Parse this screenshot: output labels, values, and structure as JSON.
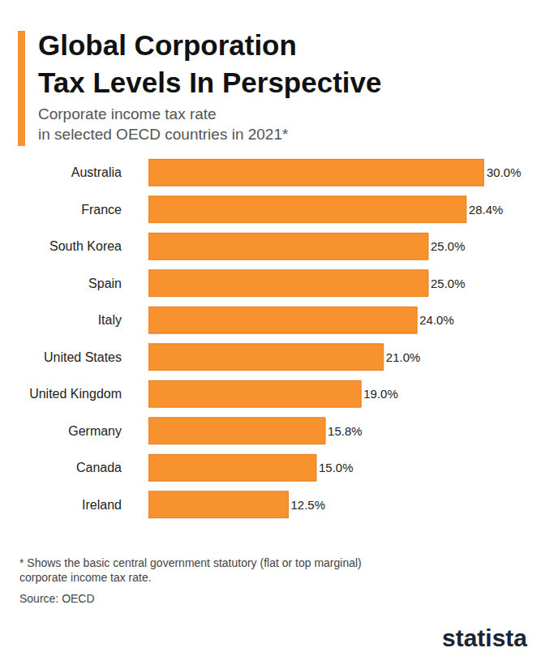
{
  "chart_data": {
    "type": "bar",
    "orientation": "horizontal",
    "title": [
      "Global Corporation",
      "Tax Levels In Perspective"
    ],
    "subtitle": [
      "Corporate income tax rate",
      "in selected OECD countries in 2021*"
    ],
    "footnote": [
      "* Shows the basic central government statutory (flat or top marginal)",
      "corporate income tax rate."
    ],
    "source": "Source: OECD",
    "brand": "statista",
    "categories": [
      "Australia",
      "France",
      "South Korea",
      "Spain",
      "Italy",
      "United States",
      "United Kingdom",
      "Germany",
      "Canada",
      "Ireland"
    ],
    "values": [
      30.0,
      28.4,
      25.0,
      25.0,
      24.0,
      21.0,
      19.0,
      15.8,
      15.0,
      12.5
    ],
    "value_labels": [
      "30.0%",
      "28.4%",
      "25.0%",
      "25.0%",
      "24.0%",
      "21.0%",
      "19.0%",
      "15.8%",
      "15.0%",
      "12.5%"
    ],
    "color": "#f7922f",
    "xlim": [
      0,
      30
    ],
    "data_labels": true,
    "tick_labels": "y",
    "grid": false
  }
}
